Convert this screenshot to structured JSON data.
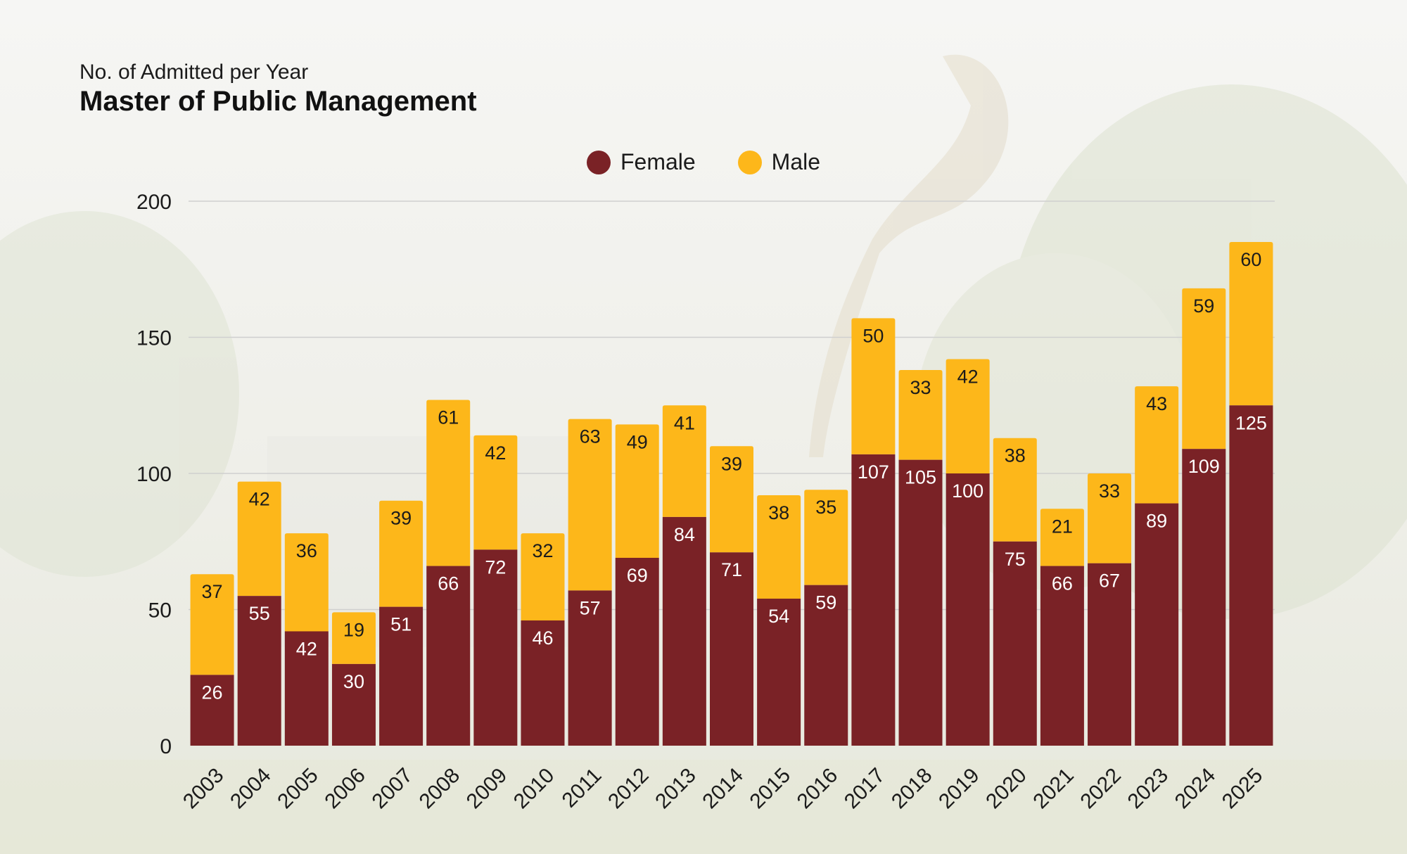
{
  "colors": {
    "female": "#7a2226",
    "male": "#fdb71a",
    "grid": "#cfcfcf",
    "axis_text": "#1b1b1b"
  },
  "chart_data": {
    "type": "bar",
    "stacked": true,
    "subtitle": "No. of Admitted per Year",
    "title": "Master of Public Management",
    "xlabel": "",
    "ylabel": "",
    "ylim": [
      0,
      200
    ],
    "yticks": [
      0,
      50,
      100,
      150,
      200
    ],
    "categories": [
      "2003",
      "2004",
      "2005",
      "2006",
      "2007",
      "2008",
      "2009",
      "2010",
      "2011",
      "2012",
      "2013",
      "2014",
      "2015",
      "2016",
      "2017",
      "2018",
      "2019",
      "2020",
      "2021",
      "2022",
      "2023",
      "2024",
      "2025"
    ],
    "series": [
      {
        "name": "Female",
        "values": [
          26,
          55,
          42,
          30,
          51,
          66,
          72,
          46,
          57,
          69,
          84,
          71,
          54,
          59,
          107,
          105,
          100,
          75,
          66,
          67,
          89,
          109,
          125
        ]
      },
      {
        "name": "Male",
        "values": [
          37,
          42,
          36,
          19,
          39,
          61,
          42,
          32,
          63,
          49,
          41,
          39,
          38,
          35,
          50,
          33,
          42,
          38,
          21,
          33,
          43,
          59,
          60
        ]
      }
    ],
    "legend_position": "top-center",
    "grid": true
  }
}
